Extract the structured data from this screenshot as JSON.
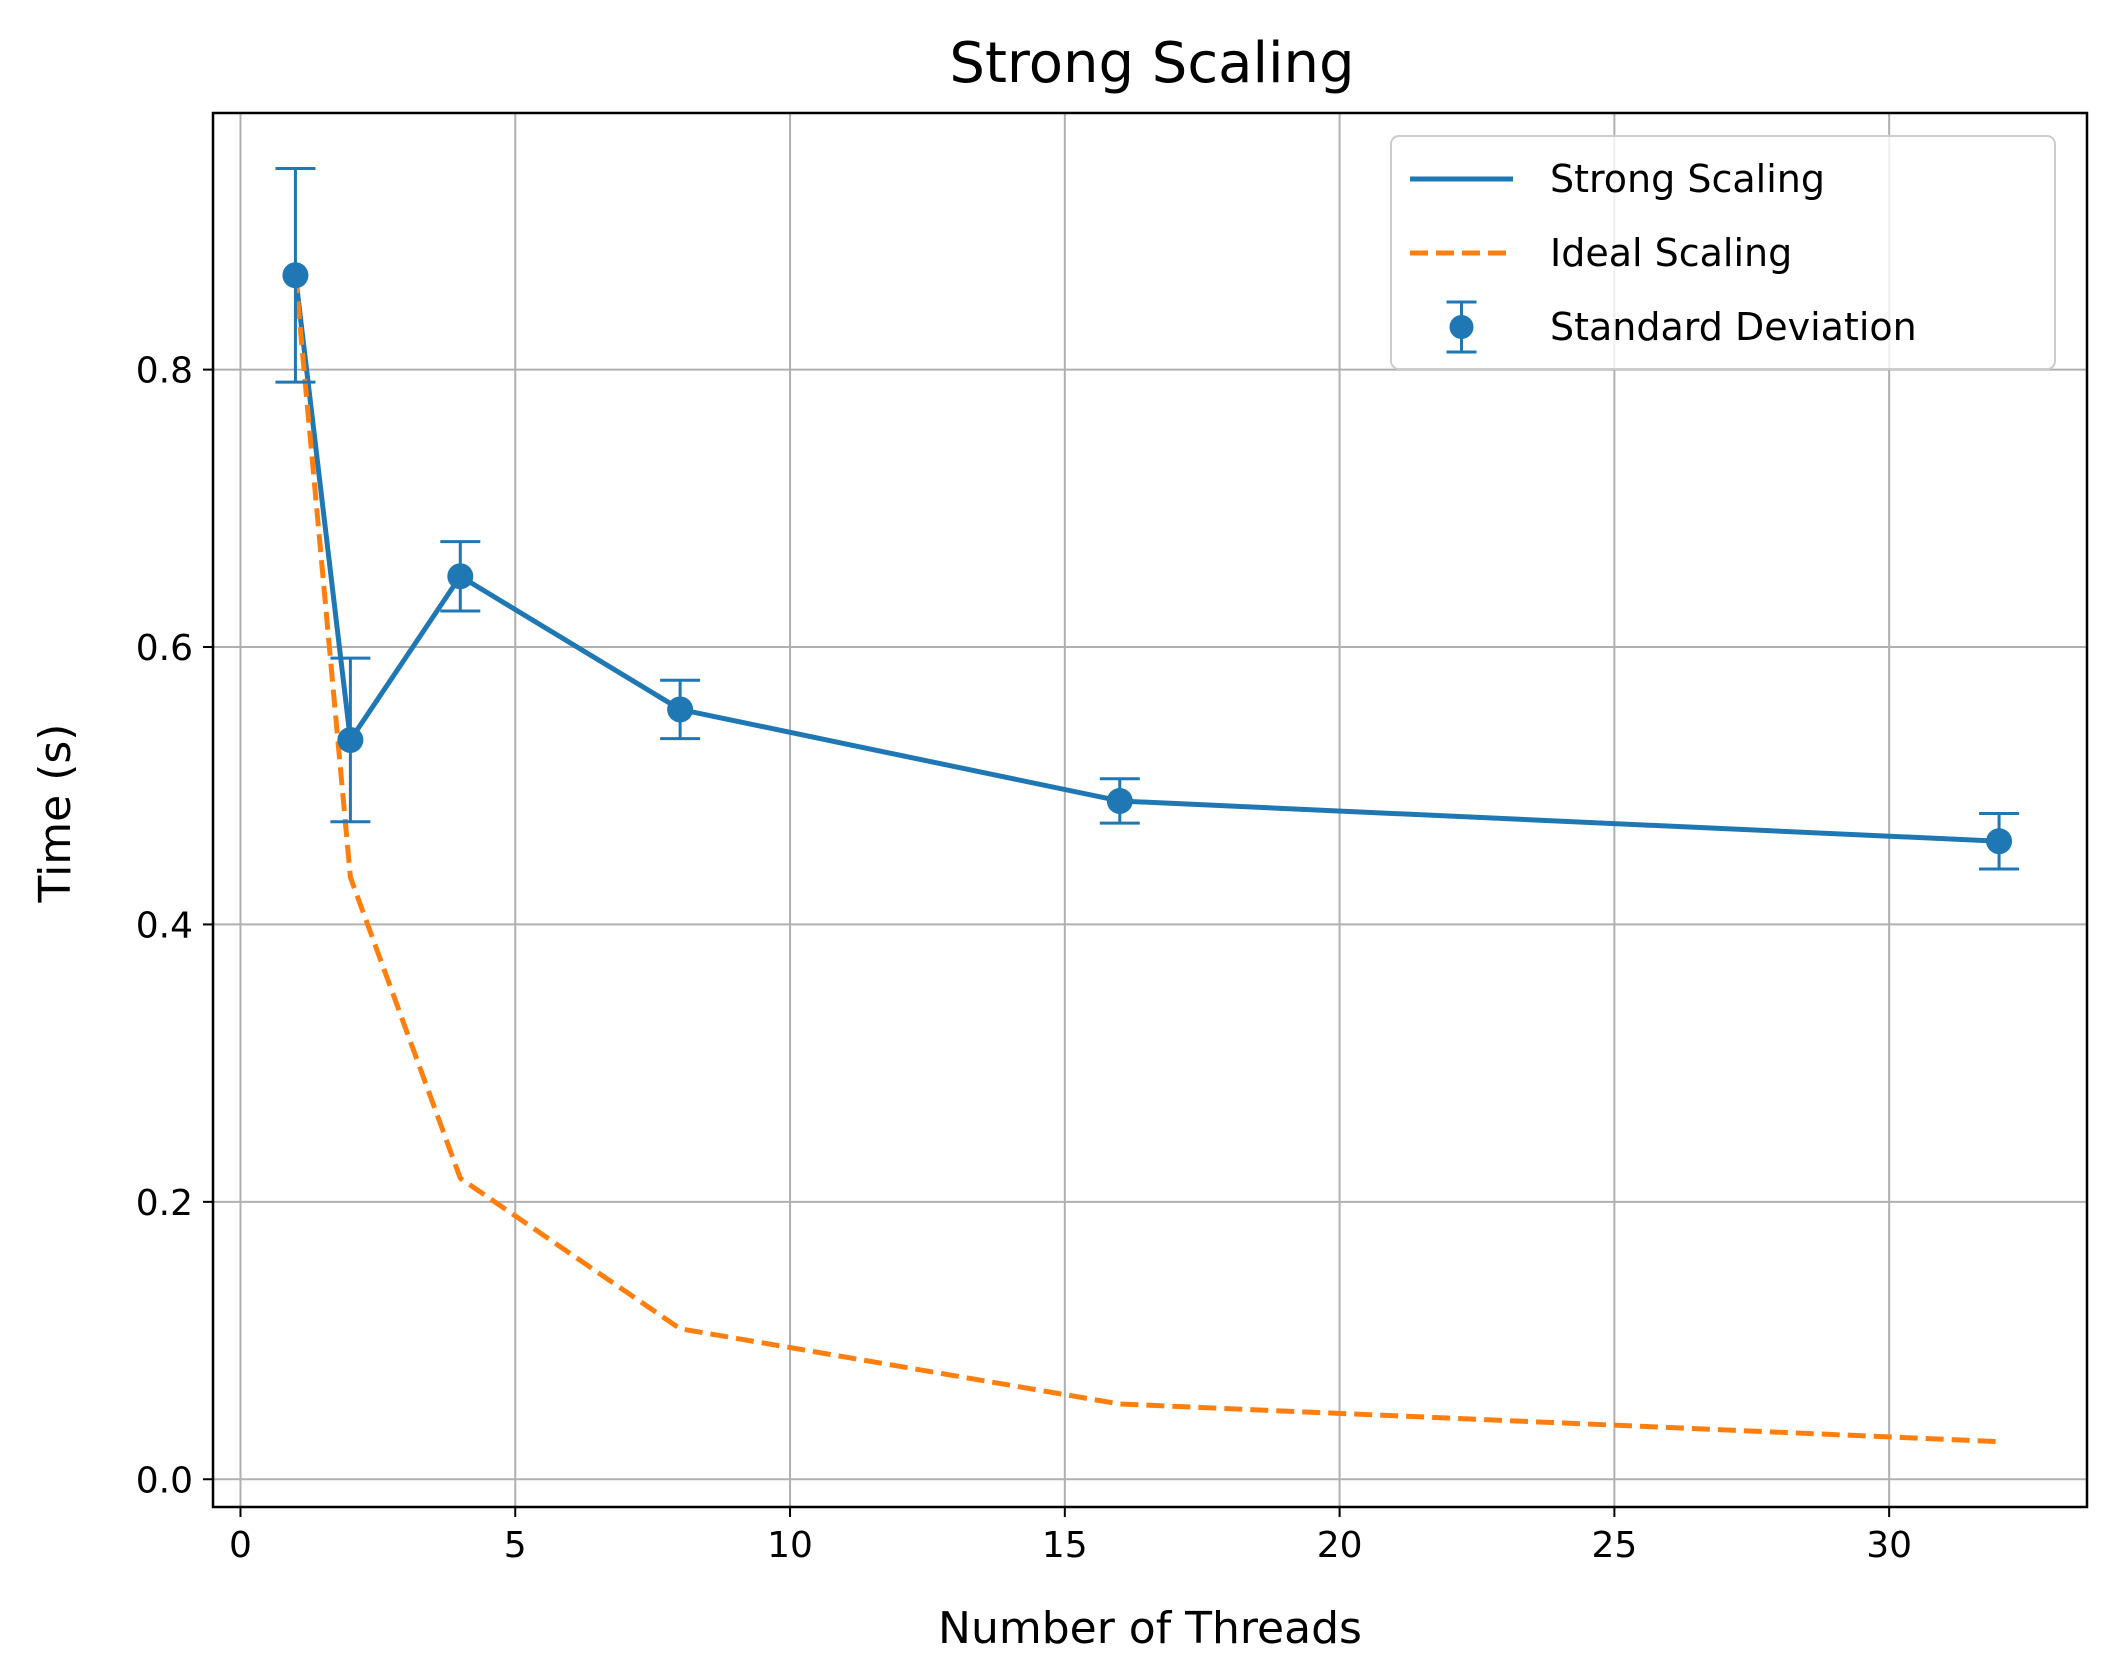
{
  "chart_data": {
    "type": "line",
    "title": "Strong Scaling",
    "xlabel": "Number of Threads",
    "ylabel": "Time (s)",
    "xlim": [
      -0.5,
      33.6
    ],
    "ylim": [
      -0.02,
      0.985
    ],
    "x_ticks": [
      0,
      5,
      10,
      15,
      20,
      25,
      30
    ],
    "y_ticks": [
      0.0,
      0.2,
      0.4,
      0.6,
      0.8
    ],
    "y_tick_labels": [
      "0.0",
      "0.2",
      "0.4",
      "0.6",
      "0.8"
    ],
    "grid": true,
    "legend_position": "top-right",
    "series": [
      {
        "name": "Strong Scaling",
        "style": "solid",
        "color": "#1f77b4",
        "x": [
          1,
          2,
          4,
          8,
          16,
          32
        ],
        "y": [
          0.868,
          0.533,
          0.651,
          0.555,
          0.489,
          0.46
        ]
      },
      {
        "name": "Ideal Scaling",
        "style": "dashed",
        "color": "#ff7f0e",
        "x": [
          1,
          2,
          4,
          8,
          16,
          32
        ],
        "y": [
          0.868,
          0.434,
          0.217,
          0.1085,
          0.05425,
          0.027125
        ]
      },
      {
        "name": "Standard Deviation",
        "style": "errorbar",
        "color": "#1f77b4",
        "x": [
          1,
          2,
          4,
          8,
          16,
          32
        ],
        "y": [
          0.868,
          0.533,
          0.651,
          0.555,
          0.489,
          0.46
        ],
        "err": [
          0.077,
          0.059,
          0.025,
          0.021,
          0.016,
          0.02
        ]
      }
    ]
  }
}
